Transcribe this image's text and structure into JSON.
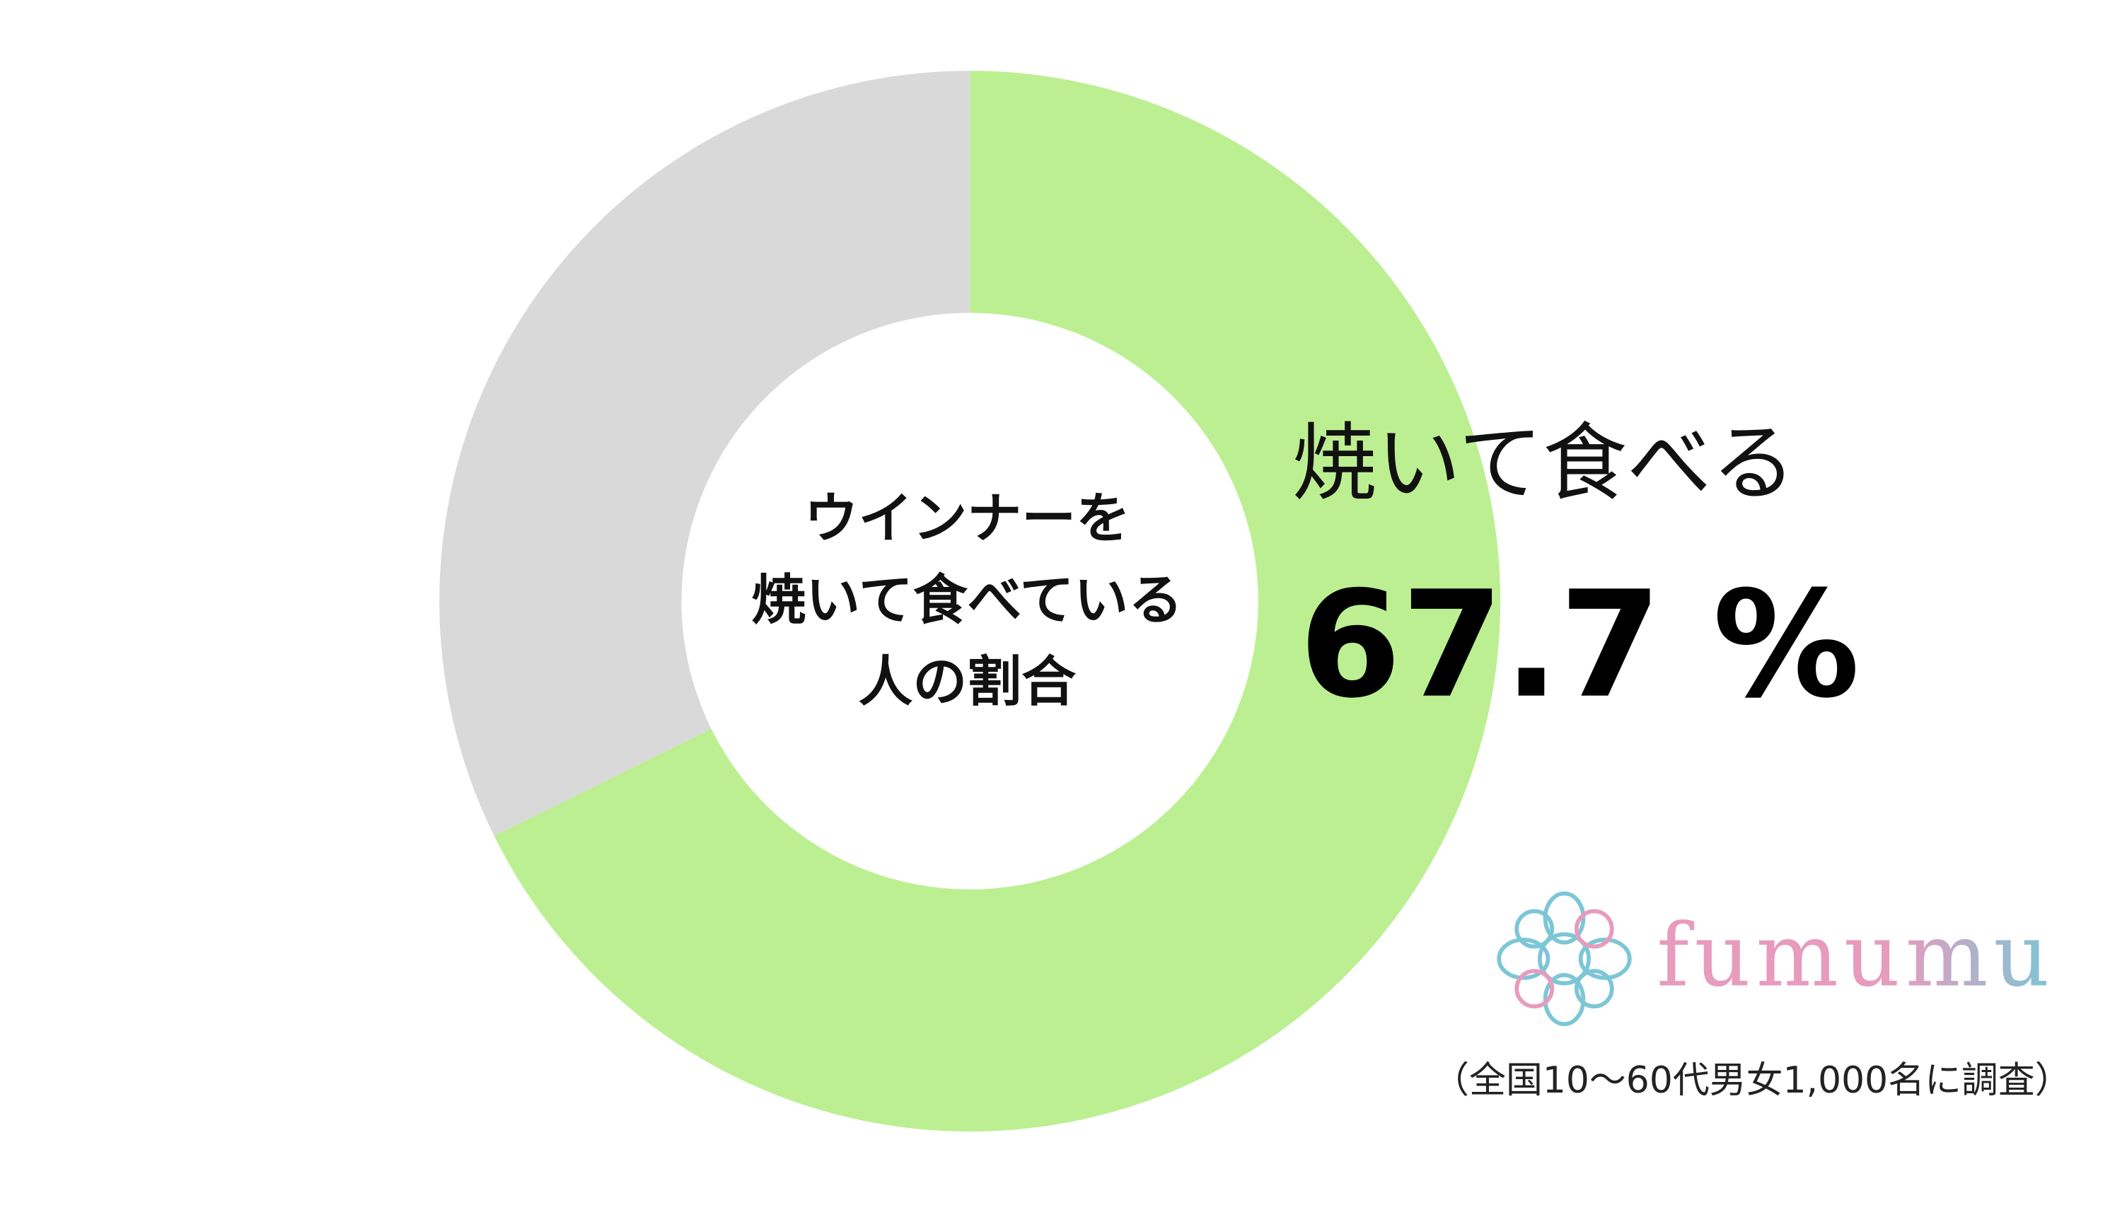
{
  "chart_data": {
    "type": "donut",
    "center_label": [
      "ウインナーを",
      "焼いて食べている",
      "人の割合"
    ],
    "categories": [
      "焼いて食べる",
      null
    ],
    "values": [
      67.7,
      32.3
    ],
    "value_labels": [
      "67.7 %",
      null
    ],
    "colors": [
      "#bcef91",
      "#d9d9d9"
    ],
    "logo": "fumumu",
    "note": "（全国10～60代男女1,000名に調査）"
  }
}
